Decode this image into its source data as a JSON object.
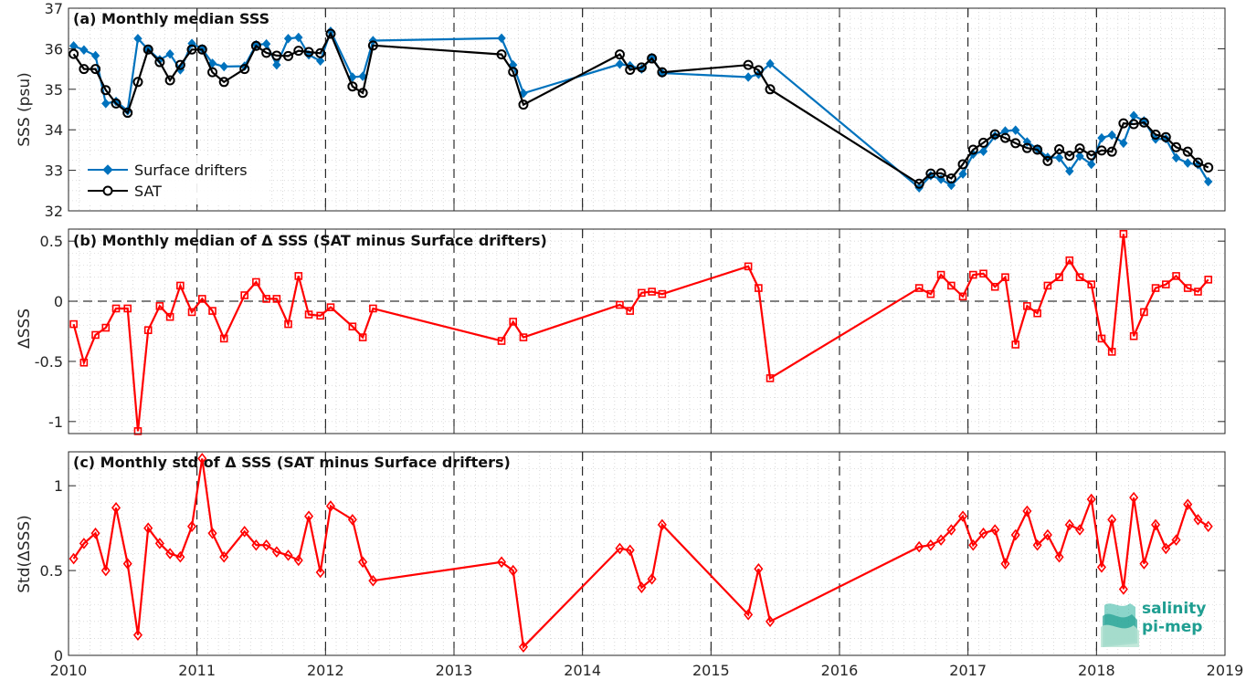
{
  "logo": {
    "line1": "salinity",
    "line2": "pi-mep"
  },
  "x_ticks": [
    "2010",
    "2011",
    "2012",
    "2013",
    "2014",
    "2015",
    "2016",
    "2017",
    "2018",
    "2019"
  ],
  "chart_data": [
    {
      "type": "line",
      "title": "(a) Monthly median SSS",
      "ylabel": "SSS (psu)",
      "ylim": [
        32,
        37
      ],
      "yticks": [
        32,
        33,
        34,
        35,
        36,
        37
      ],
      "xlim": [
        2010,
        2019
      ],
      "grid": true,
      "legend": "bottom-left",
      "colors": {
        "Surface drifters": "#0072BD",
        "SAT": "#000000"
      },
      "series": [
        {
          "name": "Surface drifters",
          "marker": "diamond-filled",
          "x": [
            2010.04,
            2010.12,
            2010.21,
            2010.29,
            2010.37,
            2010.46,
            2010.54,
            2010.62,
            2010.71,
            2010.79,
            2010.87,
            2010.96,
            2011.04,
            2011.12,
            2011.21,
            2011.37,
            2011.46,
            2011.54,
            2011.62,
            2011.71,
            2011.79,
            2011.87,
            2011.96,
            2012.04,
            2012.21,
            2012.29,
            2012.37,
            2013.37,
            2013.46,
            2013.54,
            2014.29,
            2014.37,
            2014.46,
            2014.54,
            2014.62,
            2015.29,
            2015.37,
            2015.46,
            2016.62,
            2016.71,
            2016.79,
            2016.87,
            2016.96,
            2017.04,
            2017.12,
            2017.21,
            2017.29,
            2017.37,
            2017.46,
            2017.54,
            2017.62,
            2017.71,
            2017.79,
            2017.87,
            2017.96,
            2018.04,
            2018.12,
            2018.21,
            2018.29,
            2018.37,
            2018.46,
            2018.54,
            2018.62,
            2018.71,
            2018.79,
            2018.87
          ],
          "y": [
            36.07,
            35.97,
            35.83,
            34.65,
            34.7,
            34.47,
            36.25,
            35.98,
            35.73,
            35.87,
            35.48,
            36.13,
            36.0,
            35.64,
            35.56,
            35.57,
            36.1,
            36.12,
            35.6,
            36.25,
            36.28,
            35.85,
            35.7,
            36.43,
            35.3,
            35.32,
            36.2,
            36.26,
            35.6,
            34.9,
            35.62,
            35.58,
            35.5,
            35.78,
            35.4,
            35.3,
            35.37,
            35.63,
            32.57,
            32.87,
            32.78,
            32.63,
            32.91,
            33.4,
            33.47,
            33.85,
            33.97,
            33.99,
            33.7,
            33.53,
            33.32,
            33.31,
            32.98,
            33.35,
            33.15,
            33.8,
            33.87,
            33.67,
            34.35,
            34.22,
            33.77,
            33.78,
            33.31,
            33.18,
            33.14,
            32.72
          ]
        },
        {
          "name": "SAT",
          "marker": "circle-open",
          "x": [
            2010.04,
            2010.12,
            2010.21,
            2010.29,
            2010.37,
            2010.46,
            2010.54,
            2010.62,
            2010.71,
            2010.79,
            2010.87,
            2010.96,
            2011.04,
            2011.12,
            2011.21,
            2011.37,
            2011.46,
            2011.54,
            2011.62,
            2011.71,
            2011.79,
            2011.87,
            2011.96,
            2012.04,
            2012.21,
            2012.29,
            2012.37,
            2013.37,
            2013.46,
            2013.54,
            2014.29,
            2014.37,
            2014.46,
            2014.54,
            2014.62,
            2015.29,
            2015.37,
            2015.46,
            2016.62,
            2016.71,
            2016.79,
            2016.87,
            2016.96,
            2017.04,
            2017.12,
            2017.21,
            2017.29,
            2017.37,
            2017.46,
            2017.54,
            2017.62,
            2017.71,
            2017.79,
            2017.87,
            2017.96,
            2018.04,
            2018.12,
            2018.21,
            2018.29,
            2018.37,
            2018.46,
            2018.54,
            2018.62,
            2018.71,
            2018.79,
            2018.87
          ],
          "y": [
            35.87,
            35.5,
            35.5,
            34.98,
            34.65,
            34.42,
            35.18,
            35.98,
            35.67,
            35.22,
            35.6,
            35.98,
            35.98,
            35.42,
            35.18,
            35.5,
            36.07,
            35.9,
            35.83,
            35.82,
            35.95,
            35.92,
            35.89,
            36.37,
            35.07,
            34.91,
            36.08,
            35.86,
            35.43,
            34.62,
            35.86,
            35.48,
            35.54,
            35.76,
            35.42,
            35.6,
            35.47,
            35.0,
            32.67,
            32.92,
            32.93,
            32.8,
            33.15,
            33.51,
            33.68,
            33.89,
            33.8,
            33.67,
            33.55,
            33.51,
            33.23,
            33.52,
            33.36,
            33.54,
            33.37,
            33.49,
            33.46,
            34.16,
            34.14,
            34.18,
            33.88,
            33.82,
            33.57,
            33.46,
            33.19,
            33.07
          ]
        }
      ]
    },
    {
      "type": "line",
      "title": "(b) Monthly median of Δ SSS (SAT minus Surface drifters)",
      "ylabel": "ΔSSS",
      "ylim": [
        -1.1,
        0.6
      ],
      "yticks": [
        -1,
        -0.5,
        0,
        0.5
      ],
      "yticklabels": [
        "-1",
        "-0.5",
        "0",
        "0.5"
      ],
      "xlim": [
        2010,
        2019
      ],
      "grid": true,
      "zero_line": "dashed",
      "colors": {
        "series": "#FF0000"
      },
      "series": [
        {
          "marker": "square-open",
          "x": [
            2010.04,
            2010.12,
            2010.21,
            2010.29,
            2010.37,
            2010.46,
            2010.54,
            2010.62,
            2010.71,
            2010.79,
            2010.87,
            2010.96,
            2011.04,
            2011.12,
            2011.21,
            2011.37,
            2011.46,
            2011.54,
            2011.62,
            2011.71,
            2011.79,
            2011.87,
            2011.96,
            2012.04,
            2012.21,
            2012.29,
            2012.37,
            2013.37,
            2013.46,
            2013.54,
            2014.29,
            2014.37,
            2014.46,
            2014.54,
            2014.62,
            2015.29,
            2015.37,
            2015.46,
            2016.62,
            2016.71,
            2016.79,
            2016.87,
            2016.96,
            2017.04,
            2017.12,
            2017.21,
            2017.29,
            2017.37,
            2017.46,
            2017.54,
            2017.62,
            2017.71,
            2017.79,
            2017.87,
            2017.96,
            2018.04,
            2018.12,
            2018.21,
            2018.29,
            2018.37,
            2018.46,
            2018.54,
            2018.62,
            2018.71,
            2018.79,
            2018.87
          ],
          "y": [
            -0.19,
            -0.51,
            -0.28,
            -0.22,
            -0.06,
            -0.06,
            -1.08,
            -0.24,
            -0.04,
            -0.13,
            0.13,
            -0.09,
            0.02,
            -0.08,
            -0.31,
            0.05,
            0.16,
            0.02,
            0.02,
            -0.19,
            0.21,
            -0.11,
            -0.12,
            -0.05,
            -0.21,
            -0.3,
            -0.06,
            -0.33,
            -0.17,
            -0.3,
            -0.03,
            -0.08,
            0.07,
            0.08,
            0.06,
            0.29,
            0.11,
            -0.64,
            0.11,
            0.06,
            0.22,
            0.13,
            0.04,
            0.22,
            0.23,
            0.12,
            0.2,
            -0.36,
            -0.04,
            -0.1,
            0.13,
            0.2,
            0.34,
            0.2,
            0.14,
            -0.31,
            -0.42,
            0.56,
            -0.29,
            -0.09,
            0.11,
            0.14,
            0.21,
            0.11,
            0.08,
            0.18
          ]
        }
      ]
    },
    {
      "type": "line",
      "title": "(c) Monthly std of Δ SSS (SAT minus Surface drifters)",
      "ylabel": "Std(ΔSSS)",
      "ylim": [
        0,
        1.2
      ],
      "yticks": [
        0,
        0.5,
        1
      ],
      "yticklabels": [
        "0",
        "0.5",
        "1"
      ],
      "xlim": [
        2010,
        2019
      ],
      "grid": true,
      "colors": {
        "series": "#FF0000"
      },
      "series": [
        {
          "marker": "diamond-open",
          "x": [
            2010.04,
            2010.12,
            2010.21,
            2010.29,
            2010.37,
            2010.46,
            2010.54,
            2010.62,
            2010.71,
            2010.79,
            2010.87,
            2010.96,
            2011.04,
            2011.12,
            2011.21,
            2011.37,
            2011.46,
            2011.54,
            2011.62,
            2011.71,
            2011.79,
            2011.87,
            2011.96,
            2012.04,
            2012.21,
            2012.29,
            2012.37,
            2013.37,
            2013.46,
            2013.54,
            2014.29,
            2014.37,
            2014.46,
            2014.54,
            2014.62,
            2015.29,
            2015.37,
            2015.46,
            2016.62,
            2016.71,
            2016.79,
            2016.87,
            2016.96,
            2017.04,
            2017.12,
            2017.21,
            2017.29,
            2017.37,
            2017.46,
            2017.54,
            2017.62,
            2017.71,
            2017.79,
            2017.87,
            2017.96,
            2018.04,
            2018.12,
            2018.21,
            2018.29,
            2018.37,
            2018.46,
            2018.54,
            2018.62,
            2018.71,
            2018.79,
            2018.87
          ],
          "y": [
            0.57,
            0.66,
            0.72,
            0.5,
            0.87,
            0.54,
            0.12,
            0.75,
            0.66,
            0.6,
            0.58,
            0.76,
            1.16,
            0.72,
            0.58,
            0.73,
            0.65,
            0.65,
            0.61,
            0.59,
            0.56,
            0.82,
            0.49,
            0.88,
            0.8,
            0.55,
            0.44,
            0.55,
            0.5,
            0.05,
            0.63,
            0.62,
            0.4,
            0.45,
            0.77,
            0.24,
            0.51,
            0.2,
            0.64,
            0.65,
            0.68,
            0.74,
            0.82,
            0.65,
            0.72,
            0.74,
            0.54,
            0.71,
            0.85,
            0.65,
            0.71,
            0.58,
            0.77,
            0.74,
            0.92,
            0.52,
            0.8,
            0.39,
            0.93,
            0.54,
            0.77,
            0.63,
            0.68,
            0.89,
            0.8,
            0.76
          ]
        }
      ]
    }
  ]
}
